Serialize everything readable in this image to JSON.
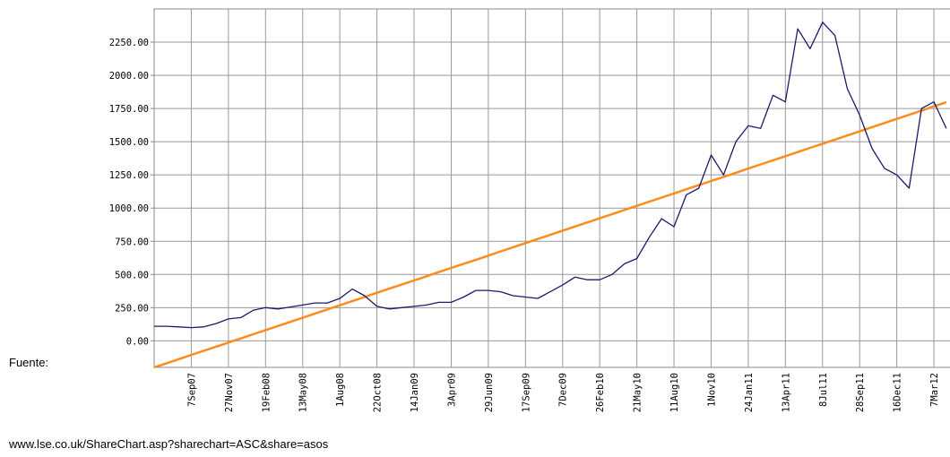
{
  "chart_data": {
    "type": "line",
    "categories": [
      null,
      null,
      null,
      "7Sep07",
      null,
      null,
      "27Nov07",
      null,
      null,
      "19Feb08",
      null,
      null,
      "13May08",
      null,
      null,
      "1Aug08",
      null,
      null,
      "22Oct08",
      null,
      null,
      "14Jan09",
      null,
      null,
      "3Apr09",
      null,
      null,
      "29Jun09",
      null,
      null,
      "17Sep09",
      null,
      null,
      "7Dec09",
      null,
      null,
      "26Feb10",
      null,
      null,
      "21May10",
      null,
      null,
      "11Aug10",
      null,
      null,
      "1Nov10",
      null,
      null,
      "24Jan11",
      null,
      null,
      "13Apr11",
      null,
      null,
      "8Jul11",
      null,
      null,
      "28Sep11",
      null,
      null,
      "16Dec11",
      null,
      null,
      "7Mar12",
      null
    ],
    "series": [
      {
        "color": "#1a1a6e",
        "values": [
          110,
          110,
          105,
          100,
          105,
          130,
          165,
          175,
          230,
          250,
          240,
          255,
          270,
          285,
          285,
          320,
          390,
          340,
          260,
          240,
          250,
          260,
          270,
          290,
          290,
          330,
          380,
          380,
          370,
          340,
          330,
          320,
          370,
          420,
          480,
          460,
          460,
          500,
          580,
          620,
          780,
          920,
          860,
          1100,
          1150,
          1400,
          1250,
          1500,
          1620,
          1600,
          1850,
          1800,
          2350,
          2200,
          2400,
          2300,
          1900,
          1700,
          1450,
          1300,
          1250,
          1150,
          1750,
          1800,
          1600
        ]
      },
      {
        "color": "#ff8c1a",
        "values": [
          -200,
          -169,
          -138,
          -106,
          -75,
          -44,
          -13,
          18,
          50,
          81,
          112,
          143,
          174,
          206,
          237,
          268,
          299,
          330,
          362,
          393,
          424,
          455,
          486,
          518,
          549,
          580,
          611,
          642,
          674,
          705,
          736,
          767,
          798,
          830,
          861,
          892,
          923,
          954,
          986,
          1017,
          1048,
          1079,
          1110,
          1142,
          1173,
          1204,
          1235,
          1266,
          1298,
          1329,
          1360,
          1391,
          1422,
          1454,
          1485,
          1516,
          1547,
          1578,
          1610,
          1641,
          1672,
          1703,
          1734,
          1766,
          1797
        ]
      }
    ],
    "ylim": [
      -200,
      2500
    ],
    "yticks": [
      {
        "value": 0,
        "label": "0.00"
      },
      {
        "value": 250,
        "label": "250.00"
      },
      {
        "value": 500,
        "label": "500.00"
      },
      {
        "value": 750,
        "label": "750.00"
      },
      {
        "value": 1000,
        "label": "1000.00"
      },
      {
        "value": 1250,
        "label": "1250.00"
      },
      {
        "value": 1500,
        "label": "1500.00"
      },
      {
        "value": 1750,
        "label": "1750.00"
      },
      {
        "value": 2000,
        "label": "2000.00"
      },
      {
        "value": 2250,
        "label": "2250.00"
      }
    ],
    "grid": true
  },
  "source_label": "Fuente:",
  "source_url": "www.lse.co.uk/ShareChart.asp?sharechart=ASC&share=asos"
}
